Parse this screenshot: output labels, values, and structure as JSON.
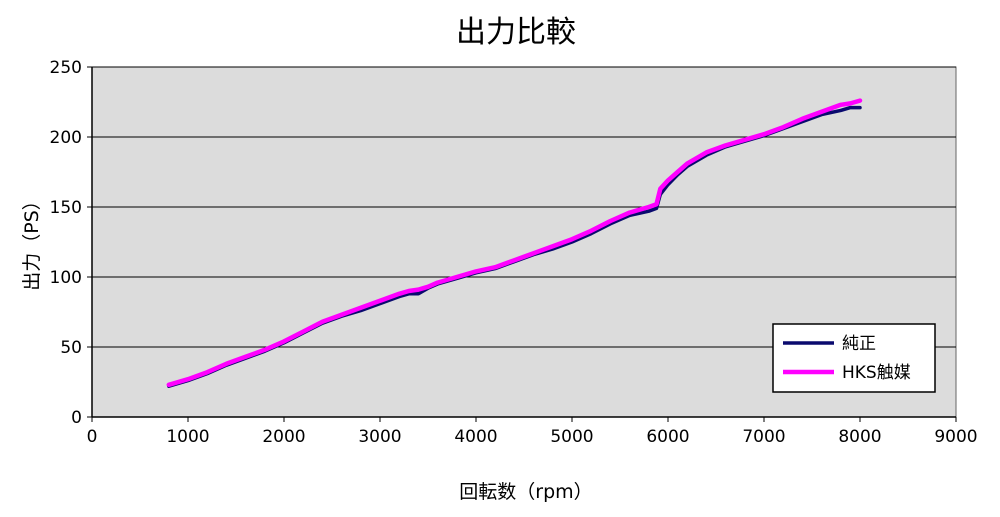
{
  "chart_data": {
    "type": "line",
    "title": "出力比較",
    "xlabel": "回転数（rpm）",
    "ylabel": "出力（PS）",
    "xlim": [
      0,
      9000
    ],
    "ylim": [
      0,
      250
    ],
    "x_ticks": [
      0,
      1000,
      2000,
      3000,
      4000,
      5000,
      6000,
      7000,
      8000,
      9000
    ],
    "y_ticks": [
      0,
      50,
      100,
      150,
      200,
      250
    ],
    "grid": "horizontal",
    "legend_position": "bottom-right",
    "background_color": "#dcdcdc",
    "series": [
      {
        "name": "純正",
        "color": "#0a0a6e",
        "x": [
          800,
          1000,
          1200,
          1400,
          1600,
          1800,
          2000,
          2200,
          2400,
          2600,
          2800,
          3000,
          3200,
          3300,
          3400,
          3450,
          3500,
          3600,
          3800,
          4000,
          4200,
          4400,
          4600,
          4800,
          5000,
          5200,
          5400,
          5600,
          5800,
          5880,
          5920,
          6000,
          6100,
          6200,
          6400,
          6600,
          6800,
          7000,
          7200,
          7400,
          7600,
          7800,
          7900,
          8000
        ],
        "y": [
          22,
          26,
          31,
          37,
          42,
          47,
          53,
          60,
          67,
          72,
          76,
          81,
          86,
          88,
          88,
          90,
          92,
          95,
          99,
          103,
          106,
          111,
          116,
          120,
          125,
          131,
          138,
          144,
          147,
          149,
          159,
          166,
          173,
          179,
          187,
          193,
          197,
          201,
          206,
          211,
          216,
          219,
          221,
          221
        ]
      },
      {
        "name": "HKS触媒",
        "color": "#ff00ff",
        "x": [
          800,
          1000,
          1200,
          1400,
          1600,
          1800,
          2000,
          2200,
          2400,
          2600,
          2800,
          3000,
          3200,
          3300,
          3400,
          3450,
          3500,
          3600,
          3800,
          4000,
          4200,
          4400,
          4600,
          4800,
          5000,
          5200,
          5400,
          5600,
          5800,
          5880,
          5920,
          6000,
          6100,
          6200,
          6400,
          6600,
          6800,
          7000,
          7200,
          7400,
          7600,
          7800,
          7900,
          8000
        ],
        "y": [
          23,
          27,
          32,
          38,
          43,
          48,
          54,
          61,
          68,
          73,
          78,
          83,
          88,
          90,
          91,
          92,
          93,
          96,
          100,
          104,
          107,
          112,
          117,
          122,
          127,
          133,
          140,
          146,
          150,
          152,
          163,
          169,
          175,
          181,
          189,
          194,
          198,
          202,
          207,
          213,
          218,
          223,
          224,
          226
        ]
      }
    ]
  }
}
